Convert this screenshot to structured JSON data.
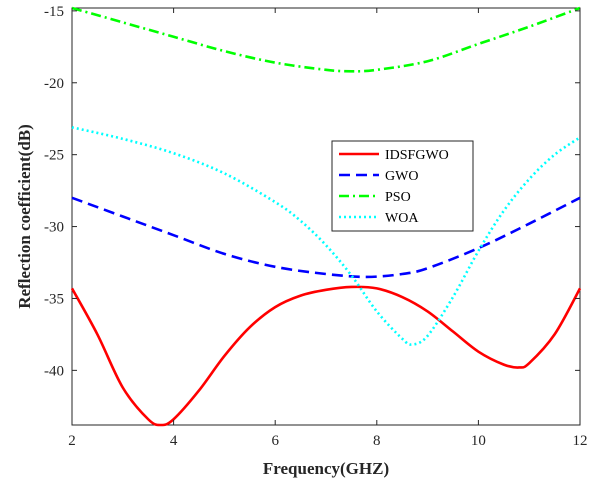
{
  "chart_data": {
    "type": "line",
    "xlabel": "Frequency(GHZ)",
    "ylabel": "Reflection coefficient(dB)",
    "xlim": [
      2,
      12
    ],
    "ylim": [
      -43.8,
      -14.8
    ],
    "xticks": [
      2,
      4,
      6,
      8,
      10,
      12
    ],
    "yticks": [
      -15,
      -20,
      -25,
      -30,
      -35,
      -40
    ],
    "grid": false,
    "legend_position": "center-right",
    "series": [
      {
        "name": "IDSFGWO",
        "color": "#ff0000",
        "dash": "solid",
        "x": [
          2,
          2.5,
          3,
          3.5,
          3.75,
          4,
          4.5,
          5,
          5.5,
          6,
          6.5,
          7,
          7.5,
          8,
          8.5,
          9,
          9.5,
          10,
          10.5,
          10.8,
          11,
          11.5,
          12
        ],
        "y": [
          -34.3,
          -37.5,
          -41.2,
          -43.4,
          -43.8,
          -43.4,
          -41.4,
          -39.0,
          -37.0,
          -35.6,
          -34.8,
          -34.4,
          -34.2,
          -34.3,
          -34.9,
          -35.9,
          -37.3,
          -38.7,
          -39.6,
          -39.8,
          -39.5,
          -37.5,
          -34.3
        ]
      },
      {
        "name": "GWO",
        "color": "#0000ff",
        "dash": "dashed",
        "x": [
          2,
          3,
          4,
          5,
          6,
          7,
          7.8,
          8.5,
          9,
          10,
          11,
          12
        ],
        "y": [
          -28.0,
          -29.3,
          -30.6,
          -31.9,
          -32.8,
          -33.3,
          -33.5,
          -33.3,
          -32.9,
          -31.5,
          -29.8,
          -28.0
        ]
      },
      {
        "name": "PSO",
        "color": "#00ff00",
        "dash": "dashdot",
        "x": [
          2,
          3,
          4,
          5,
          6,
          7,
          7.5,
          8,
          9,
          10,
          11,
          12
        ],
        "y": [
          -14.8,
          -15.8,
          -16.8,
          -17.8,
          -18.6,
          -19.1,
          -19.2,
          -19.1,
          -18.5,
          -17.3,
          -16.1,
          -14.8
        ]
      },
      {
        "name": "WOA",
        "color": "#00ffff",
        "dash": "dotted",
        "x": [
          2,
          3,
          4,
          5,
          6,
          6.5,
          7,
          7.5,
          8,
          8.5,
          8.7,
          9,
          9.5,
          10,
          10.5,
          11,
          11.5,
          12
        ],
        "y": [
          -23.1,
          -23.9,
          -24.9,
          -26.3,
          -28.3,
          -29.6,
          -31.3,
          -33.4,
          -35.9,
          -37.8,
          -38.2,
          -37.6,
          -34.9,
          -31.7,
          -28.9,
          -26.7,
          -25.0,
          -23.8
        ]
      }
    ]
  }
}
